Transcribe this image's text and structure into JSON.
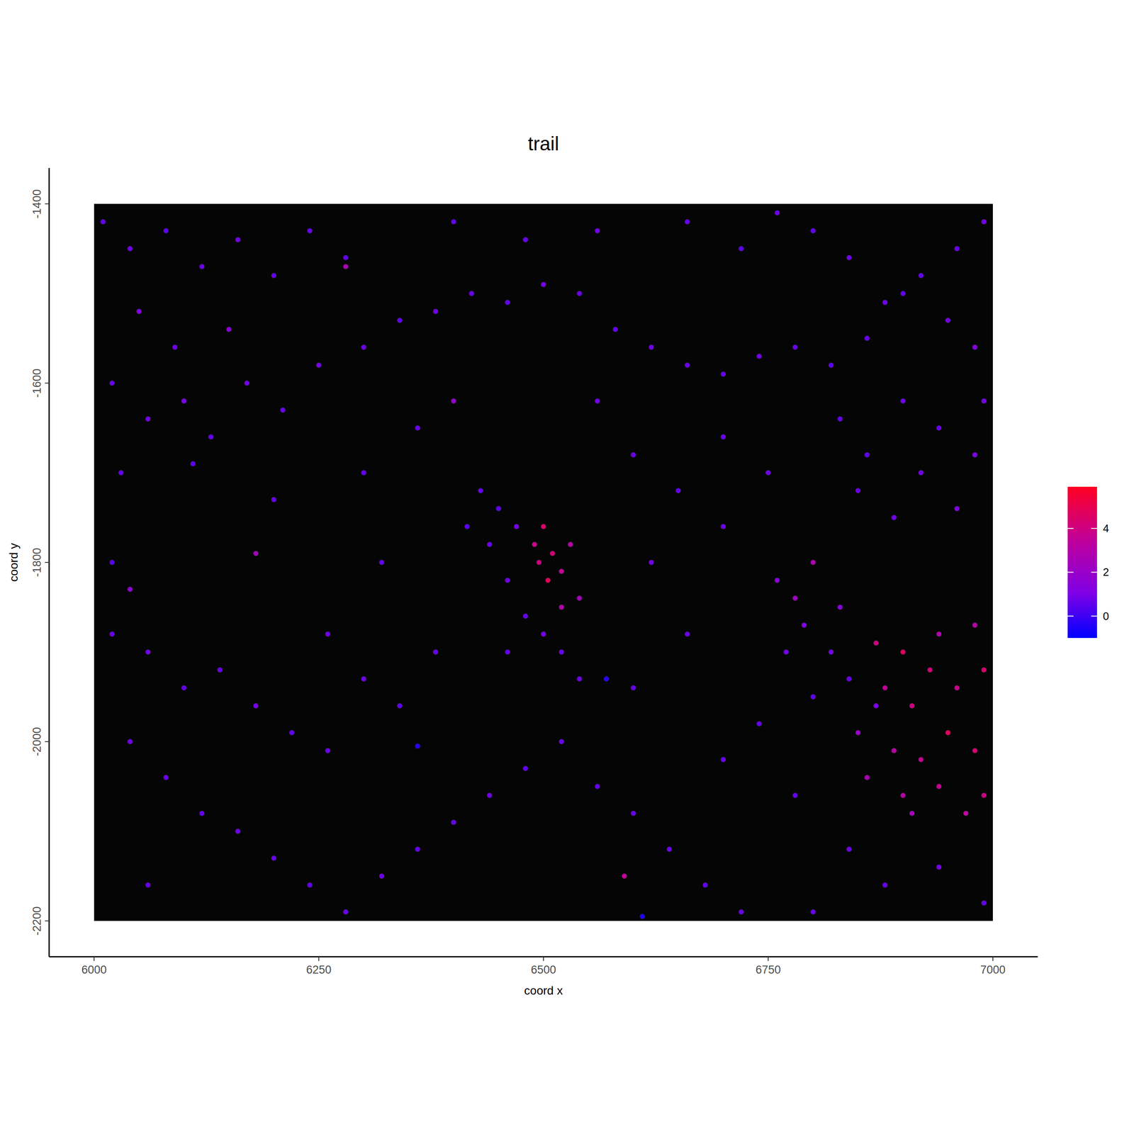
{
  "chart_data": {
    "type": "scatter",
    "title": "trail",
    "x_label": "coord x",
    "y_label": "coord y",
    "x": [
      6010,
      6040,
      6080,
      6120,
      6160,
      6200,
      6240,
      6280,
      6050,
      6090,
      6020,
      6060,
      6100,
      6130,
      6170,
      6210,
      6250,
      6110,
      6030,
      6150,
      6300,
      6340,
      6380,
      6420,
      6460,
      6500,
      6540,
      6580,
      6620,
      6660,
      6700,
      6740,
      6780,
      6820,
      6860,
      6880,
      6920,
      6960,
      6990,
      6800,
      6760,
      6840,
      6900,
      6950,
      6980,
      6720,
      6660,
      6560,
      6480,
      6400,
      6900,
      6940,
      6980,
      6920,
      6860,
      6960,
      6890,
      6850,
      6990,
      6830,
      6430,
      6450,
      6470,
      6490,
      6500,
      6510,
      6520,
      6505,
      6495,
      6530,
      6440,
      6460,
      6480,
      6500,
      6520,
      6540,
      6460,
      6540,
      6520,
      6415,
      6760,
      6780,
      6800,
      6790,
      6820,
      6840,
      6870,
      6830,
      6770,
      6800,
      6870,
      6900,
      6930,
      6960,
      6990,
      6880,
      6910,
      6950,
      6980,
      6990,
      6920,
      6890,
      6860,
      6900,
      6940,
      6970,
      6850,
      6980,
      6940,
      6910,
      6020,
      6060,
      6100,
      6140,
      6180,
      6220,
      6260,
      6040,
      6080,
      6120,
      6160,
      6200,
      6240,
      6280,
      6320,
      6360,
      6400,
      6440,
      6480,
      6520,
      6560,
      6600,
      6640,
      6680,
      6720,
      6300,
      6340,
      6380,
      6260,
      6060,
      6300,
      6360,
      6400,
      6560,
      6600,
      6650,
      6700,
      6620,
      6660,
      6600,
      6700,
      6750,
      6740,
      6700,
      6780,
      6840,
      6880,
      6940,
      6990,
      6800,
      6020,
      6040,
      6280,
      6590,
      6360,
      6570,
      6610,
      6180,
      6320,
      6200
    ],
    "values": [
      -1420,
      -1450,
      -1430,
      -1470,
      -1440,
      -1480,
      -1430,
      -1460,
      -1520,
      -1560,
      -1600,
      -1640,
      -1620,
      -1660,
      -1600,
      -1630,
      -1580,
      -1690,
      -1700,
      -1540,
      -1560,
      -1530,
      -1520,
      -1500,
      -1510,
      -1490,
      -1500,
      -1540,
      -1560,
      -1580,
      -1590,
      -1570,
      -1560,
      -1580,
      -1550,
      -1510,
      -1480,
      -1450,
      -1420,
      -1430,
      -1410,
      -1460,
      -1500,
      -1530,
      -1560,
      -1450,
      -1420,
      -1430,
      -1440,
      -1420,
      -1620,
      -1650,
      -1680,
      -1700,
      -1680,
      -1740,
      -1750,
      -1720,
      -1620,
      -1640,
      -1720,
      -1740,
      -1760,
      -1780,
      -1760,
      -1790,
      -1810,
      -1820,
      -1800,
      -1780,
      -1780,
      -1820,
      -1860,
      -1880,
      -1900,
      -1930,
      -1900,
      -1840,
      -1850,
      -1760,
      -1820,
      -1840,
      -1800,
      -1870,
      -1900,
      -1930,
      -1960,
      -1850,
      -1900,
      -1950,
      -1890,
      -1900,
      -1920,
      -1940,
      -1920,
      -1940,
      -1960,
      -1990,
      -2010,
      -2060,
      -2020,
      -2010,
      -2040,
      -2060,
      -2050,
      -2080,
      -1990,
      -1870,
      -1880,
      -2080,
      -1880,
      -1900,
      -1940,
      -1920,
      -1960,
      -1990,
      -2010,
      -2000,
      -2040,
      -2080,
      -2100,
      -2130,
      -2160,
      -2190,
      -2150,
      -2120,
      -2090,
      -2060,
      -2030,
      -2000,
      -2050,
      -2080,
      -2120,
      -2160,
      -2190,
      -1930,
      -1960,
      -1900,
      -1880,
      -2160,
      -1700,
      -1650,
      -1620,
      -1620,
      -1680,
      -1720,
      -1760,
      -1800,
      -1880,
      -1940,
      -1660,
      -1700,
      -1980,
      -2020,
      -2060,
      -2120,
      -2160,
      -2140,
      -2180,
      -2190,
      -1800,
      -1830,
      -1470,
      -2150,
      -2005,
      -1930,
      -2195,
      -1790,
      -1800,
      -1730
    ],
    "expression": [
      0.6,
      0.8,
      0.5,
      0.7,
      0.9,
      0.6,
      0.7,
      0.5,
      1.2,
      0.8,
      0.7,
      0.9,
      1.0,
      0.6,
      0.8,
      0.7,
      0.9,
      0.5,
      0.6,
      1.5,
      0.7,
      0.6,
      0.8,
      0.7,
      0.6,
      0.9,
      0.7,
      0.6,
      0.8,
      0.7,
      0.6,
      0.8,
      0.7,
      0.5,
      0.7,
      0.8,
      0.6,
      0.7,
      0.9,
      0.6,
      0.7,
      0.8,
      0.6,
      0.9,
      1.1,
      0.5,
      0.6,
      0.8,
      0.7,
      0.6,
      0.8,
      0.7,
      1.0,
      0.9,
      0.6,
      1.2,
      0.8,
      0.7,
      0.9,
      0.6,
      0.6,
      0.5,
      0.9,
      3.8,
      4.5,
      4.2,
      3.6,
      4.8,
      3.9,
      3.2,
      0.7,
      0.8,
      0.6,
      0.9,
      0.7,
      0.8,
      0.6,
      2.5,
      3.0,
      0.5,
      1.5,
      2.2,
      2.8,
      1.2,
      0.9,
      0.7,
      1.0,
      1.4,
      0.8,
      0.6,
      3.9,
      4.6,
      4.2,
      3.8,
      4.4,
      3.5,
      4.0,
      4.7,
      4.3,
      3.9,
      3.6,
      3.2,
      2.6,
      3.0,
      3.7,
      3.4,
      2.0,
      3.1,
      2.8,
      2.4,
      0.7,
      0.8,
      0.6,
      0.7,
      0.9,
      0.6,
      0.7,
      0.8,
      0.7,
      0.6,
      0.8,
      0.7,
      0.6,
      0.7,
      0.8,
      0.6,
      0.7,
      0.8,
      0.6,
      0.7,
      0.6,
      0.7,
      0.8,
      0.6,
      0.7,
      0.8,
      0.6,
      0.7,
      0.8,
      0.7,
      0.6,
      0.7,
      1.8,
      0.8,
      0.7,
      0.6,
      0.8,
      0.9,
      0.7,
      0.6,
      0.7,
      0.8,
      0.6,
      0.7,
      0.6,
      0.8,
      0.7,
      0.9,
      0.6,
      0.7,
      0.4,
      1.6,
      2.6,
      3.5,
      -0.4,
      -0.3,
      -0.5,
      2.4,
      0.6,
      0.7
    ],
    "xlim": [
      5950,
      7050
    ],
    "ylim": [
      -2240,
      -1360
    ],
    "xticks": [
      6000,
      6250,
      6500,
      6750,
      7000
    ],
    "yticks": [
      -1400,
      -1600,
      -1800,
      -2000,
      -2200
    ],
    "grid": false,
    "colorbar": {
      "range": [
        -1.0,
        5.9
      ],
      "ticks": [
        0,
        2,
        4
      ]
    }
  }
}
